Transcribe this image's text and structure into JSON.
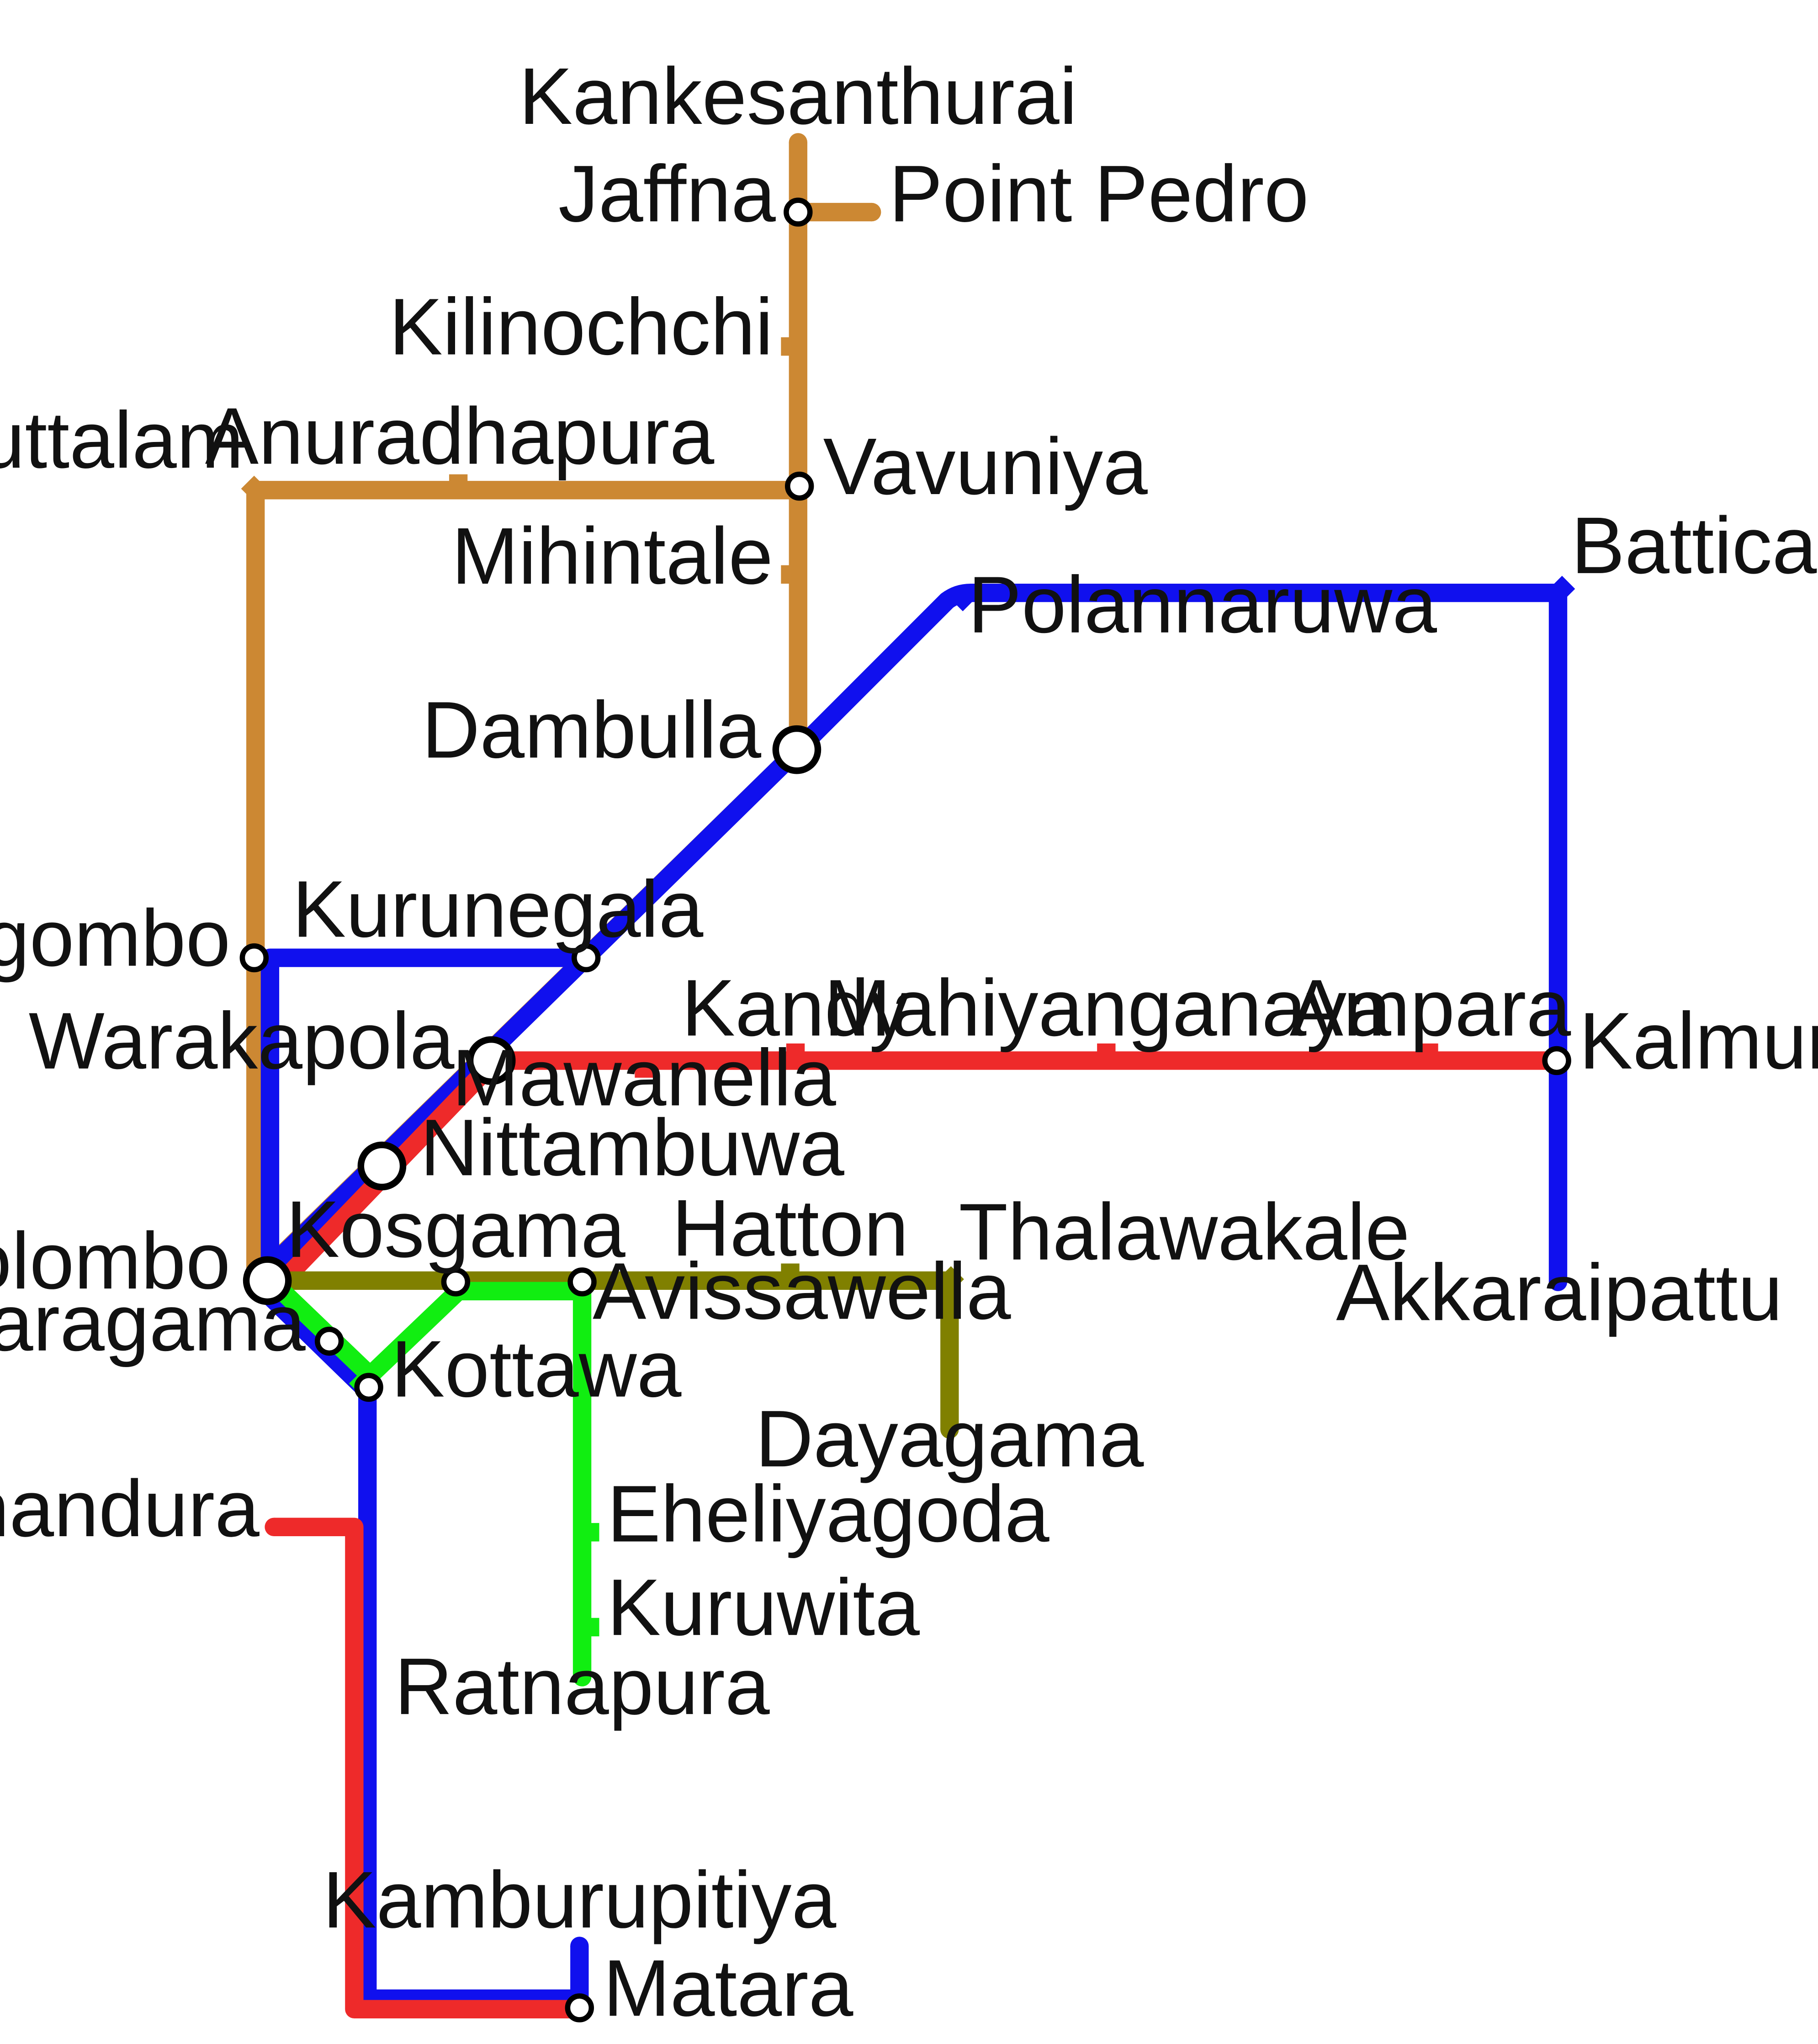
{
  "colors": {
    "northern": "#CC8833",
    "blue": "#1010EE",
    "red": "#EE2A2A",
    "olive": "#808000",
    "green": "#11EE11",
    "interchange_fill": "#FFFFFF",
    "interchange_stroke": "#000000"
  },
  "lines": [
    {
      "id": "northern",
      "color": "#CC8833"
    },
    {
      "id": "blue",
      "color": "#1010EE"
    },
    {
      "id": "red",
      "color": "#EE2A2A"
    },
    {
      "id": "olive",
      "color": "#808000"
    },
    {
      "id": "green",
      "color": "#11EE11"
    }
  ],
  "stations": {
    "kankesanthurai": "Kankesanthurai",
    "jaffna": "Jaffna",
    "point_pedro": "Point Pedro",
    "kilinochchi": "Kilinochchi",
    "puttalam": "Puttalam",
    "anuradhapura": "Anuradhapura",
    "vavuniya": "Vavuniya",
    "mihintale": "Mihintale",
    "batticaloa": "Batticaloa",
    "polannaruwa": "Polannaruwa",
    "dambulla": "Dambulla",
    "negombo": "Negombo",
    "kurunegala": "Kurunegala",
    "warakapola": "Warakapola",
    "kandy": "Kandy",
    "mahiyanganaya": "Mahiyanganaya",
    "ampara": "Ampara",
    "kalmunai": "Kalmunai",
    "mawanella": "Mawanella",
    "nittambuwa": "Nittambuwa",
    "colombo": "Colombo",
    "kosgama": "Kosgama",
    "hatton": "Hatton",
    "thalawakale": "Thalawakale",
    "avissawella": "Avissawella",
    "akkaraipattu": "Akkaraipattu",
    "maharagama": "Maharagama",
    "kottawa": "Kottawa",
    "dayagama": "Dayagama",
    "panandura": "Panandura",
    "eheliyagoda": "Eheliyagoda",
    "kuruwita": "Kuruwita",
    "ratnapura": "Ratnapura",
    "kamburupitiya": "Kamburupitiya",
    "matara": "Matara"
  }
}
